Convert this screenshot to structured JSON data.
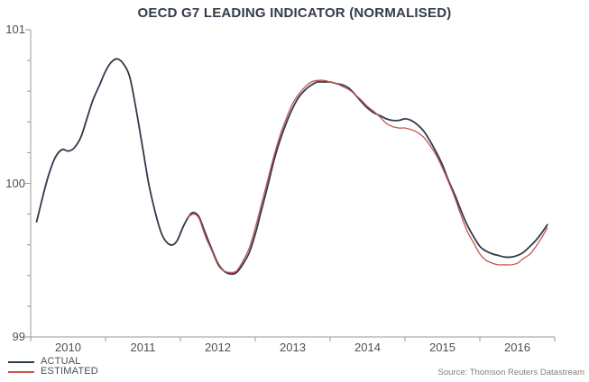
{
  "chart_data": {
    "type": "line",
    "title": "OECD G7 LEADING INDICATOR (NORMALISED)",
    "source": "Source: Thomson Reuters Datastream",
    "grid": false,
    "legend_position": "bottom-left",
    "x_axis": {
      "min": 2010,
      "max": 2017,
      "year_labels": [
        "2010",
        "2011",
        "2012",
        "2013",
        "2014",
        "2015",
        "2016"
      ],
      "tick_note": "ticks at each year boundary, labels centered within year"
    },
    "y_axis": {
      "min": 99,
      "max": 101,
      "tick_labels": [
        "101",
        "100",
        "99"
      ],
      "tick_values": [
        101,
        100,
        99
      ],
      "minor_step": 0.2
    },
    "colors": {
      "actual": "#2e3b4a",
      "estimated": "#c25450",
      "axis": "#9a9a9a",
      "tick_text": "#4f4f4f",
      "title_text": "#333c48",
      "source_text": "#808080"
    },
    "series": [
      {
        "name": "ACTUAL",
        "color": "#2e3b4a",
        "points": [
          [
            2010.08,
            99.75
          ],
          [
            2010.17,
            99.93
          ],
          [
            2010.25,
            100.07
          ],
          [
            2010.33,
            100.17
          ],
          [
            2010.42,
            100.22
          ],
          [
            2010.5,
            100.21
          ],
          [
            2010.58,
            100.23
          ],
          [
            2010.67,
            100.3
          ],
          [
            2010.75,
            100.42
          ],
          [
            2010.83,
            100.54
          ],
          [
            2010.92,
            100.64
          ],
          [
            2011.0,
            100.73
          ],
          [
            2011.08,
            100.79
          ],
          [
            2011.16,
            100.81
          ],
          [
            2011.25,
            100.77
          ],
          [
            2011.33,
            100.68
          ],
          [
            2011.42,
            100.45
          ],
          [
            2011.5,
            100.22
          ],
          [
            2011.58,
            99.99
          ],
          [
            2011.67,
            99.8
          ],
          [
            2011.75,
            99.67
          ],
          [
            2011.83,
            99.61
          ],
          [
            2011.9,
            99.6
          ],
          [
            2011.96,
            99.63
          ],
          [
            2012.04,
            99.72
          ],
          [
            2012.12,
            99.79
          ],
          [
            2012.18,
            99.81
          ],
          [
            2012.25,
            99.78
          ],
          [
            2012.33,
            99.68
          ],
          [
            2012.42,
            99.57
          ],
          [
            2012.5,
            99.48
          ],
          [
            2012.58,
            99.43
          ],
          [
            2012.67,
            99.41
          ],
          [
            2012.75,
            99.42
          ],
          [
            2012.83,
            99.47
          ],
          [
            2012.92,
            99.55
          ],
          [
            2013.0,
            99.67
          ],
          [
            2013.08,
            99.82
          ],
          [
            2013.17,
            99.99
          ],
          [
            2013.25,
            100.15
          ],
          [
            2013.33,
            100.28
          ],
          [
            2013.42,
            100.4
          ],
          [
            2013.5,
            100.49
          ],
          [
            2013.58,
            100.56
          ],
          [
            2013.67,
            100.61
          ],
          [
            2013.75,
            100.64
          ],
          [
            2013.83,
            100.66
          ],
          [
            2013.92,
            100.66
          ],
          [
            2014.0,
            100.66
          ],
          [
            2014.08,
            100.65
          ],
          [
            2014.17,
            100.64
          ],
          [
            2014.25,
            100.62
          ],
          [
            2014.33,
            100.58
          ],
          [
            2014.42,
            100.53
          ],
          [
            2014.5,
            100.49
          ],
          [
            2014.58,
            100.46
          ],
          [
            2014.67,
            100.44
          ],
          [
            2014.75,
            100.42
          ],
          [
            2014.83,
            100.41
          ],
          [
            2014.92,
            100.41
          ],
          [
            2015.0,
            100.42
          ],
          [
            2015.08,
            100.41
          ],
          [
            2015.17,
            100.38
          ],
          [
            2015.25,
            100.34
          ],
          [
            2015.33,
            100.28
          ],
          [
            2015.42,
            100.2
          ],
          [
            2015.5,
            100.12
          ],
          [
            2015.58,
            100.02
          ],
          [
            2015.67,
            99.92
          ],
          [
            2015.75,
            99.82
          ],
          [
            2015.83,
            99.73
          ],
          [
            2015.92,
            99.65
          ],
          [
            2016.0,
            99.59
          ],
          [
            2016.08,
            99.56
          ],
          [
            2016.17,
            99.54
          ],
          [
            2016.25,
            99.53
          ],
          [
            2016.33,
            99.52
          ],
          [
            2016.42,
            99.52
          ],
          [
            2016.5,
            99.53
          ],
          [
            2016.58,
            99.55
          ],
          [
            2016.67,
            99.59
          ],
          [
            2016.75,
            99.63
          ],
          [
            2016.83,
            99.68
          ],
          [
            2016.9,
            99.73
          ]
        ]
      },
      {
        "name": "ESTIMATED",
        "color": "#c25450",
        "points": [
          [
            2012.1,
            99.78
          ],
          [
            2012.18,
            99.8
          ],
          [
            2012.25,
            99.77
          ],
          [
            2012.33,
            99.66
          ],
          [
            2012.42,
            99.56
          ],
          [
            2012.5,
            99.47
          ],
          [
            2012.58,
            99.43
          ],
          [
            2012.67,
            99.42
          ],
          [
            2012.75,
            99.43
          ],
          [
            2012.83,
            99.49
          ],
          [
            2012.92,
            99.58
          ],
          [
            2013.0,
            99.71
          ],
          [
            2013.08,
            99.86
          ],
          [
            2013.17,
            100.03
          ],
          [
            2013.25,
            100.18
          ],
          [
            2013.33,
            100.31
          ],
          [
            2013.42,
            100.43
          ],
          [
            2013.5,
            100.52
          ],
          [
            2013.58,
            100.58
          ],
          [
            2013.67,
            100.63
          ],
          [
            2013.75,
            100.66
          ],
          [
            2013.83,
            100.67
          ],
          [
            2013.92,
            100.67
          ],
          [
            2014.0,
            100.66
          ],
          [
            2014.08,
            100.65
          ],
          [
            2014.17,
            100.63
          ],
          [
            2014.25,
            100.61
          ],
          [
            2014.33,
            100.58
          ],
          [
            2014.42,
            100.54
          ],
          [
            2014.5,
            100.5
          ],
          [
            2014.58,
            100.47
          ],
          [
            2014.67,
            100.43
          ],
          [
            2014.75,
            100.39
          ],
          [
            2014.83,
            100.37
          ],
          [
            2014.92,
            100.36
          ],
          [
            2015.0,
            100.36
          ],
          [
            2015.08,
            100.35
          ],
          [
            2015.17,
            100.33
          ],
          [
            2015.25,
            100.3
          ],
          [
            2015.33,
            100.25
          ],
          [
            2015.42,
            100.18
          ],
          [
            2015.5,
            100.1
          ],
          [
            2015.58,
            100.01
          ],
          [
            2015.67,
            99.9
          ],
          [
            2015.75,
            99.79
          ],
          [
            2015.83,
            99.69
          ],
          [
            2015.92,
            99.61
          ],
          [
            2016.0,
            99.54
          ],
          [
            2016.08,
            99.5
          ],
          [
            2016.17,
            99.48
          ],
          [
            2016.25,
            99.47
          ],
          [
            2016.33,
            99.47
          ],
          [
            2016.42,
            99.47
          ],
          [
            2016.5,
            99.48
          ],
          [
            2016.58,
            99.51
          ],
          [
            2016.67,
            99.54
          ],
          [
            2016.75,
            99.59
          ],
          [
            2016.83,
            99.65
          ],
          [
            2016.9,
            99.71
          ]
        ]
      }
    ]
  }
}
